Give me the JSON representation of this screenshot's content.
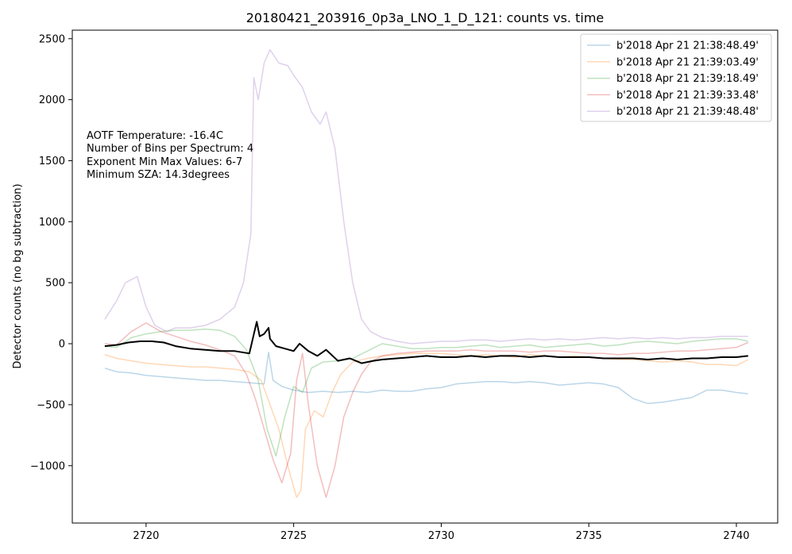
{
  "chart_data": {
    "type": "line",
    "title": "20180421_203916_0p3a_LNO_1_D_121: counts vs. time",
    "xlabel": "",
    "ylabel": "Detector counts (no bg subtraction)",
    "xlim": [
      2717.5,
      2741.4
    ],
    "ylim": [
      -1470,
      2570
    ],
    "xticks": [
      2720,
      2725,
      2730,
      2735,
      2740
    ],
    "yticks": [
      -1000,
      -500,
      0,
      500,
      1000,
      1500,
      2000,
      2500
    ],
    "grid": false,
    "legend_position": "top-right",
    "annotations": [
      "AOTF Temperature: -16.4C",
      "Number of Bins per Spectrum: 4",
      "Exponent Min Max Values: 6-7",
      "Minimum SZA: 14.3degrees"
    ],
    "series": [
      {
        "name": "b'2018 Apr 21 21:38:48.49'",
        "color": "#1f77b4",
        "opacity": 0.3,
        "width": 1.5,
        "x": [
          2718.6,
          2719.0,
          2719.5,
          2720.0,
          2720.5,
          2721.0,
          2721.5,
          2722.0,
          2722.5,
          2723.0,
          2723.5,
          2724.0,
          2724.15,
          2724.3,
          2724.6,
          2725.0,
          2725.5,
          2726.0,
          2726.5,
          2727.0,
          2727.5,
          2728.0,
          2728.5,
          2729.0,
          2729.5,
          2730.0,
          2730.5,
          2731.0,
          2731.5,
          2732.0,
          2732.5,
          2733.0,
          2733.5,
          2734.0,
          2734.5,
          2735.0,
          2735.5,
          2736.0,
          2736.5,
          2737.0,
          2737.5,
          2738.0,
          2738.5,
          2739.0,
          2739.5,
          2740.0,
          2740.4
        ],
        "y": [
          -200,
          -230,
          -240,
          -260,
          -270,
          -280,
          -290,
          -300,
          -300,
          -310,
          -320,
          -330,
          -70,
          -300,
          -350,
          -380,
          -400,
          -390,
          -400,
          -390,
          -400,
          -380,
          -390,
          -390,
          -370,
          -360,
          -330,
          -320,
          -310,
          -310,
          -320,
          -310,
          -320,
          -340,
          -330,
          -320,
          -330,
          -360,
          -450,
          -490,
          -480,
          -460,
          -440,
          -380,
          -380,
          -400,
          -410
        ]
      },
      {
        "name": "b'2018 Apr 21 21:39:03.49'",
        "color": "#ff7f0e",
        "opacity": 0.3,
        "width": 1.5,
        "x": [
          2718.6,
          2719.0,
          2719.5,
          2720.0,
          2720.5,
          2721.0,
          2721.5,
          2722.0,
          2722.5,
          2723.0,
          2723.5,
          2723.9,
          2724.2,
          2724.5,
          2724.8,
          2725.1,
          2725.25,
          2725.4,
          2725.7,
          2726.0,
          2726.3,
          2726.6,
          2727.0,
          2727.5,
          2728.0,
          2728.5,
          2729.0,
          2729.5,
          2730.0,
          2730.5,
          2731.0,
          2731.5,
          2732.0,
          2732.5,
          2733.0,
          2733.5,
          2734.0,
          2734.5,
          2735.0,
          2735.5,
          2736.0,
          2736.5,
          2737.0,
          2737.5,
          2738.0,
          2738.5,
          2739.0,
          2739.5,
          2740.0,
          2740.4
        ],
        "y": [
          -90,
          -120,
          -140,
          -160,
          -170,
          -180,
          -190,
          -190,
          -200,
          -210,
          -230,
          -300,
          -500,
          -700,
          -1000,
          -1260,
          -1200,
          -700,
          -550,
          -600,
          -400,
          -250,
          -150,
          -120,
          -100,
          -90,
          -80,
          -80,
          -80,
          -90,
          -100,
          -90,
          -100,
          -110,
          -90,
          -100,
          -110,
          -100,
          -110,
          -120,
          -130,
          -130,
          -140,
          -150,
          -140,
          -150,
          -170,
          -170,
          -180,
          -130
        ]
      },
      {
        "name": "b'2018 Apr 21 21:39:18.49'",
        "color": "#2ca02c",
        "opacity": 0.3,
        "width": 1.5,
        "x": [
          2718.6,
          2719.0,
          2719.5,
          2720.0,
          2720.5,
          2721.0,
          2721.5,
          2722.0,
          2722.5,
          2723.0,
          2723.4,
          2723.8,
          2724.1,
          2724.4,
          2724.7,
          2725.0,
          2725.3,
          2725.6,
          2726.0,
          2726.5,
          2727.0,
          2727.5,
          2728.0,
          2728.5,
          2729.0,
          2729.5,
          2730.0,
          2730.5,
          2731.0,
          2731.5,
          2732.0,
          2732.5,
          2733.0,
          2733.5,
          2734.0,
          2734.5,
          2735.0,
          2735.5,
          2736.0,
          2736.5,
          2737.0,
          2737.5,
          2738.0,
          2738.5,
          2739.0,
          2739.5,
          2740.0,
          2740.4
        ],
        "y": [
          -20,
          -30,
          50,
          80,
          100,
          110,
          110,
          120,
          110,
          60,
          -50,
          -300,
          -700,
          -920,
          -600,
          -350,
          -400,
          -200,
          -150,
          -140,
          -120,
          -60,
          0,
          -20,
          -40,
          -40,
          -30,
          -30,
          -20,
          -10,
          -30,
          -20,
          -10,
          -30,
          -20,
          -10,
          0,
          -20,
          -10,
          10,
          20,
          10,
          0,
          20,
          30,
          40,
          40,
          20
        ]
      },
      {
        "name": "b'2018 Apr 21 21:39:33.48'",
        "color": "#d62728",
        "opacity": 0.3,
        "width": 1.5,
        "x": [
          2718.6,
          2719.0,
          2719.5,
          2720.0,
          2720.5,
          2721.0,
          2721.5,
          2722.0,
          2722.5,
          2723.0,
          2723.4,
          2723.7,
          2724.0,
          2724.3,
          2724.6,
          2724.9,
          2725.1,
          2725.3,
          2725.5,
          2725.8,
          2726.1,
          2726.4,
          2726.7,
          2727.0,
          2727.3,
          2727.6,
          2728.0,
          2728.5,
          2729.0,
          2729.5,
          2730.0,
          2730.5,
          2731.0,
          2731.5,
          2732.0,
          2732.5,
          2733.0,
          2733.5,
          2734.0,
          2734.5,
          2735.0,
          2735.5,
          2736.0,
          2736.5,
          2737.0,
          2737.5,
          2738.0,
          2738.5,
          2739.0,
          2739.5,
          2740.0,
          2740.4
        ],
        "y": [
          0,
          -10,
          100,
          170,
          100,
          60,
          20,
          -10,
          -50,
          -100,
          -250,
          -450,
          -700,
          -950,
          -1140,
          -900,
          -300,
          -80,
          -500,
          -1000,
          -1260,
          -1000,
          -600,
          -400,
          -250,
          -150,
          -100,
          -80,
          -70,
          -60,
          -60,
          -60,
          -50,
          -60,
          -60,
          -60,
          -70,
          -60,
          -60,
          -70,
          -80,
          -80,
          -90,
          -80,
          -80,
          -70,
          -60,
          -60,
          -50,
          -40,
          -30,
          10
        ]
      },
      {
        "name": "b'2018 Apr 21 21:39:48.48'",
        "color": "#9467bd",
        "opacity": 0.3,
        "width": 1.5,
        "x": [
          2718.6,
          2719.0,
          2719.3,
          2719.7,
          2720.0,
          2720.3,
          2720.7,
          2721.0,
          2721.5,
          2722.0,
          2722.5,
          2723.0,
          2723.3,
          2723.55,
          2723.65,
          2723.8,
          2724.0,
          2724.2,
          2724.5,
          2724.8,
          2725.0,
          2725.3,
          2725.6,
          2725.9,
          2726.1,
          2726.4,
          2726.7,
          2727.0,
          2727.3,
          2727.6,
          2728.0,
          2728.5,
          2729.0,
          2729.5,
          2730.0,
          2730.5,
          2731.0,
          2731.5,
          2732.0,
          2732.5,
          2733.0,
          2733.5,
          2734.0,
          2734.5,
          2735.0,
          2735.5,
          2736.0,
          2736.5,
          2737.0,
          2737.5,
          2738.0,
          2738.5,
          2739.0,
          2739.5,
          2740.0,
          2740.4
        ],
        "y": [
          200,
          350,
          500,
          550,
          300,
          150,
          100,
          130,
          130,
          150,
          200,
          300,
          500,
          900,
          2180,
          2000,
          2300,
          2410,
          2300,
          2280,
          2200,
          2100,
          1900,
          1800,
          1900,
          1600,
          1000,
          500,
          200,
          100,
          50,
          20,
          0,
          10,
          20,
          20,
          30,
          30,
          20,
          30,
          40,
          30,
          40,
          30,
          40,
          50,
          40,
          50,
          40,
          50,
          40,
          50,
          50,
          60,
          60,
          60
        ]
      },
      {
        "name": "",
        "color": "#000000",
        "opacity": 1.0,
        "width": 2,
        "x": [
          2718.6,
          2719.0,
          2719.4,
          2719.8,
          2720.2,
          2720.6,
          2721.0,
          2721.5,
          2722.0,
          2722.5,
          2723.0,
          2723.5,
          2723.75,
          2723.85,
          2724.0,
          2724.15,
          2724.2,
          2724.4,
          2724.7,
          2725.0,
          2725.2,
          2725.5,
          2725.8,
          2726.1,
          2726.5,
          2726.9,
          2727.3,
          2727.7,
          2728.0,
          2728.5,
          2729.0,
          2729.5,
          2730.0,
          2730.5,
          2731.0,
          2731.5,
          2732.0,
          2732.5,
          2733.0,
          2733.5,
          2734.0,
          2734.5,
          2735.0,
          2735.5,
          2736.0,
          2736.5,
          2737.0,
          2737.5,
          2738.0,
          2738.5,
          2739.0,
          2739.5,
          2740.0,
          2740.4
        ],
        "y": [
          -20,
          -10,
          10,
          20,
          20,
          10,
          -20,
          -40,
          -50,
          -60,
          -60,
          -80,
          180,
          60,
          80,
          130,
          40,
          -20,
          -40,
          -60,
          0,
          -60,
          -100,
          -50,
          -140,
          -120,
          -160,
          -140,
          -130,
          -120,
          -110,
          -100,
          -110,
          -110,
          -100,
          -110,
          -100,
          -100,
          -110,
          -100,
          -110,
          -110,
          -110,
          -120,
          -120,
          -120,
          -130,
          -120,
          -130,
          -120,
          -120,
          -110,
          -110,
          -100
        ]
      }
    ]
  }
}
